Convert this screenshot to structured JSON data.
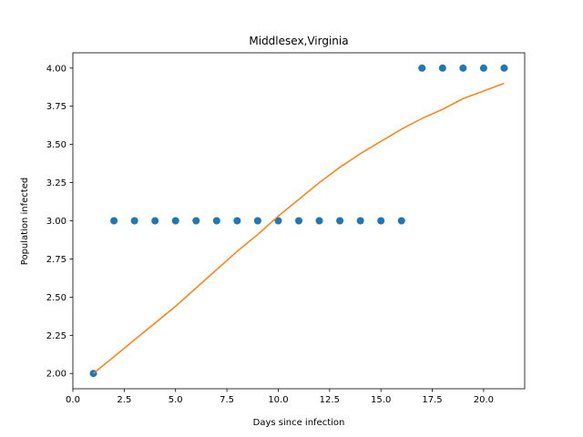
{
  "chart_data": {
    "type": "scatter",
    "title": "Middlesex,Virginia",
    "xlabel": "Days since infection",
    "ylabel": "Population infected",
    "xlim": [
      0,
      22
    ],
    "ylim": [
      1.9,
      4.1
    ],
    "grid": false,
    "legend": "none",
    "xticks": [
      0.0,
      2.5,
      5.0,
      7.5,
      10.0,
      12.5,
      15.0,
      17.5,
      20.0
    ],
    "xtick_labels": [
      "0.0",
      "2.5",
      "5.0",
      "7.5",
      "10.0",
      "12.5",
      "15.0",
      "17.5",
      "20.0"
    ],
    "yticks": [
      2.0,
      2.25,
      2.5,
      2.75,
      3.0,
      3.25,
      3.5,
      3.75,
      4.0
    ],
    "ytick_labels": [
      "2.00",
      "2.25",
      "2.50",
      "2.75",
      "3.00",
      "3.25",
      "3.50",
      "3.75",
      "4.00"
    ],
    "series": [
      {
        "kind": "scatter",
        "color": "#1f77b4",
        "x": [
          1,
          2,
          3,
          4,
          5,
          6,
          7,
          8,
          9,
          10,
          11,
          12,
          13,
          14,
          15,
          16,
          17,
          18,
          19,
          20,
          21
        ],
        "y": [
          2,
          3,
          3,
          3,
          3,
          3,
          3,
          3,
          3,
          3,
          3,
          3,
          3,
          3,
          3,
          3,
          4,
          4,
          4,
          4,
          4
        ]
      },
      {
        "kind": "line",
        "color": "#ff7f0e",
        "x": [
          1,
          2,
          3,
          4,
          5,
          6,
          7,
          8,
          9,
          10,
          11,
          12,
          13,
          14,
          15,
          16,
          17,
          18,
          19,
          20,
          21
        ],
        "y": [
          2.0,
          2.11,
          2.22,
          2.33,
          2.44,
          2.56,
          2.68,
          2.8,
          2.91,
          3.03,
          3.14,
          3.25,
          3.35,
          3.44,
          3.52,
          3.6,
          3.67,
          3.73,
          3.8,
          3.85,
          3.9
        ]
      }
    ]
  }
}
